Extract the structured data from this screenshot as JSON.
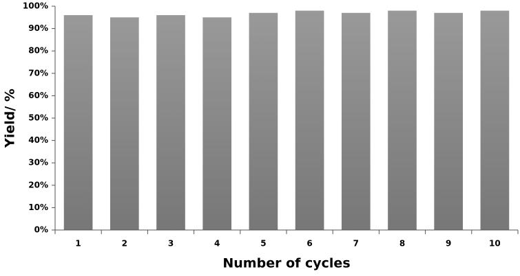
{
  "chart_data": {
    "type": "bar",
    "xlabel": "Number of cycles",
    "ylabel": "Yield/ %",
    "categories": [
      "1",
      "2",
      "3",
      "4",
      "5",
      "6",
      "7",
      "8",
      "9",
      "10"
    ],
    "values": [
      96,
      95,
      96,
      95,
      97,
      98,
      97,
      98,
      97,
      98
    ],
    "color": "#777777",
    "ylim": [
      0,
      100
    ],
    "yticks": [
      {
        "value": 0,
        "label": "0%"
      },
      {
        "value": 10,
        "label": "10%"
      },
      {
        "value": 20,
        "label": "20%"
      },
      {
        "value": 30,
        "label": "30%"
      },
      {
        "value": 40,
        "label": "40%"
      },
      {
        "value": 50,
        "label": "50%"
      },
      {
        "value": 60,
        "label": "60%"
      },
      {
        "value": 70,
        "label": "70%"
      },
      {
        "value": 80,
        "label": "80%"
      },
      {
        "value": 90,
        "label": "90%"
      },
      {
        "value": 100,
        "label": "100%"
      }
    ],
    "grid": false
  }
}
